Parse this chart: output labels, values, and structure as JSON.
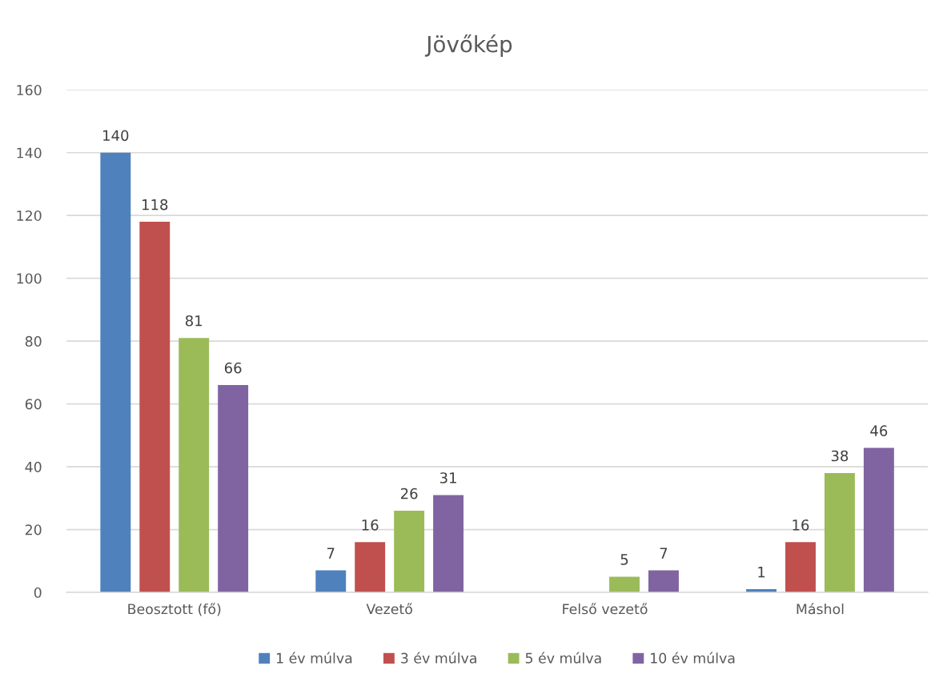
{
  "chart_data": {
    "type": "bar",
    "title": "Jövőkép",
    "categories": [
      "Beosztott (fő)",
      "Vezető",
      "Felső vezető",
      "Máshol"
    ],
    "series": [
      {
        "name": "1 év múlva",
        "color": "#4f81bd",
        "values": [
          140,
          7,
          null,
          1
        ]
      },
      {
        "name": "3 év múlva",
        "color": "#c0504d",
        "values": [
          118,
          16,
          null,
          16
        ]
      },
      {
        "name": "5 év múlva",
        "color": "#9bbb59",
        "values": [
          81,
          26,
          5,
          38
        ]
      },
      {
        "name": "10 év múlva",
        "color": "#8064a2",
        "values": [
          66,
          31,
          7,
          46
        ]
      }
    ],
    "ylim": [
      0,
      160
    ],
    "yticks": [
      0,
      20,
      40,
      60,
      80,
      100,
      120,
      140,
      160
    ],
    "grid": "y",
    "legend": "bottom",
    "data_labels": true
  }
}
